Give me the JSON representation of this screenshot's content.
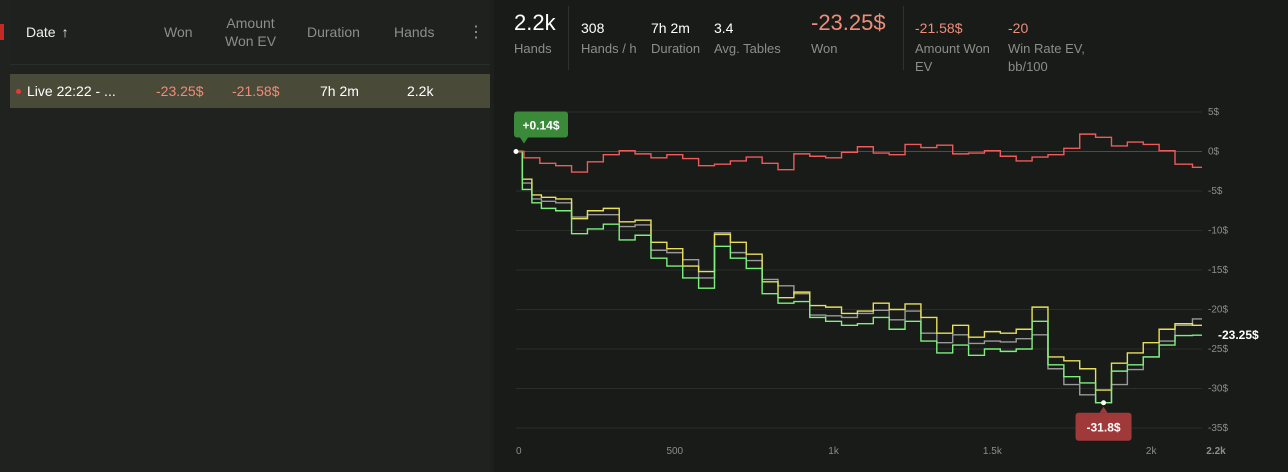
{
  "table": {
    "headers": {
      "date": "Date",
      "sort_arrow": "↑",
      "won": "Won",
      "amount_line1": "Amount",
      "amount_line2": "Won EV",
      "duration": "Duration",
      "hands": "Hands",
      "more": "⋮"
    },
    "rows": [
      {
        "label": "Live 22:22 - ...",
        "won": "-23.25$",
        "amount_won_ev": "-21.58$",
        "duration": "7h 2m",
        "hands": "2.2k"
      }
    ]
  },
  "stats": {
    "hands_value": "2.2k",
    "hands_label": "Hands",
    "hands_per_h_value": "308",
    "hands_per_h_label": "Hands / h",
    "duration_value": "7h 2m",
    "duration_label": "Duration",
    "avg_tables_value": "3.4",
    "avg_tables_label": "Avg. Tables",
    "won_value": "-23.25$",
    "won_label": "Won",
    "amount_won_ev_value": "-21.58$",
    "amount_won_ev_label_1": "Amount Won",
    "amount_won_ev_label_2": "EV",
    "win_rate_ev_value": "-20",
    "win_rate_ev_label_1": "Win Rate EV,",
    "win_rate_ev_label_2": "bb/100"
  },
  "colors": {
    "red_line": "#f05a5a",
    "yellow_line": "#e8e05a",
    "green_line": "#7ef07e",
    "grey_line": "#9a9a9a",
    "max_badge": "#3a8a3a",
    "min_badge": "#a03a3a"
  },
  "chart_data": {
    "type": "line",
    "x_ticks": [
      "0",
      "500",
      "1k",
      "1.5k",
      "2k",
      "2.2k"
    ],
    "x_tick_values": [
      0,
      500,
      1000,
      1500,
      2000,
      2160
    ],
    "y_ticks": [
      "5$",
      "0$",
      "-5$",
      "-10$",
      "-15$",
      "-20$",
      "-25$",
      "-30$",
      "-35$"
    ],
    "y_tick_values": [
      5,
      0,
      -5,
      -10,
      -15,
      -20,
      -25,
      -30,
      -35
    ],
    "xlim": [
      0,
      2160
    ],
    "ylim": [
      -35,
      5
    ],
    "max_label": "+0.14$",
    "min_label": "-31.8$",
    "end_label": "-23.25$",
    "series": [
      {
        "key": "red",
        "x": [
          0,
          50,
          100,
          150,
          200,
          250,
          300,
          350,
          400,
          450,
          500,
          550,
          600,
          650,
          700,
          750,
          800,
          850,
          900,
          950,
          1000,
          1050,
          1100,
          1150,
          1200,
          1250,
          1300,
          1350,
          1400,
          1450,
          1500,
          1550,
          1600,
          1650,
          1700,
          1750,
          1800,
          1850,
          1900,
          1950,
          2000,
          2050,
          2100,
          2160
        ],
        "y": [
          0,
          -0.8,
          -1.5,
          -1.8,
          -2.6,
          -1.3,
          -0.4,
          0.1,
          -0.3,
          -0.8,
          -0.4,
          -0.9,
          -1.8,
          -1.6,
          -1.2,
          -0.7,
          -1.5,
          -2.3,
          -0.3,
          -0.6,
          -0.8,
          -0.1,
          0.6,
          -0.2,
          -0.4,
          0.9,
          0.5,
          0.8,
          -0.3,
          -0.2,
          0.1,
          -0.6,
          -1.2,
          -0.7,
          -0.4,
          0.4,
          2.2,
          1.8,
          0.7,
          1.2,
          0.9,
          0.1,
          -1.6,
          -2.0
        ]
      },
      {
        "key": "yellow",
        "x": [
          0,
          40,
          60,
          100,
          150,
          200,
          250,
          300,
          350,
          400,
          450,
          500,
          550,
          600,
          650,
          700,
          750,
          800,
          850,
          900,
          950,
          1000,
          1050,
          1100,
          1150,
          1200,
          1250,
          1300,
          1350,
          1400,
          1450,
          1500,
          1550,
          1600,
          1650,
          1700,
          1750,
          1800,
          1850,
          1900,
          1950,
          2000,
          2050,
          2100,
          2160
        ],
        "y": [
          0,
          -3.5,
          -5.5,
          -5.8,
          -6.0,
          -8.5,
          -7.5,
          -7.2,
          -8.9,
          -8.7,
          -11.5,
          -12.3,
          -14.5,
          -15.2,
          -10.5,
          -11.5,
          -13.0,
          -16.5,
          -18.5,
          -17.8,
          -19.5,
          -19.7,
          -20.5,
          -20.2,
          -19.2,
          -20.0,
          -19.3,
          -21.0,
          -23.0,
          -22.0,
          -23.5,
          -22.8,
          -23.0,
          -22.5,
          -19.7,
          -26.0,
          -26.5,
          -27.5,
          -30.2,
          -26.8,
          -25.5,
          -24.2,
          -22.5,
          -21.8,
          -22.0
        ]
      },
      {
        "key": "grey",
        "x": [
          0,
          40,
          60,
          100,
          150,
          200,
          250,
          300,
          350,
          400,
          450,
          500,
          550,
          600,
          650,
          700,
          750,
          800,
          850,
          900,
          950,
          1000,
          1050,
          1100,
          1150,
          1200,
          1250,
          1300,
          1350,
          1400,
          1450,
          1500,
          1550,
          1600,
          1650,
          1700,
          1750,
          1800,
          1850,
          1900,
          1950,
          2000,
          2050,
          2100,
          2160
        ],
        "y": [
          0,
          -4.0,
          -6.0,
          -6.3,
          -6.5,
          -8.3,
          -8.0,
          -8.0,
          -9.5,
          -9.3,
          -12.5,
          -12.8,
          -13.7,
          -16.0,
          -10.3,
          -12.8,
          -13.8,
          -16.2,
          -17.0,
          -18.0,
          -20.7,
          -20.8,
          -21.0,
          -20.5,
          -20.1,
          -21.3,
          -20.2,
          -23.0,
          -24.2,
          -23.2,
          -24.3,
          -24.0,
          -24.1,
          -23.7,
          -23.2,
          -27.5,
          -29.5,
          -30.8,
          -31.8,
          -29.5,
          -27.6,
          -26.0,
          -24.0,
          -22.0,
          -21.2
        ]
      },
      {
        "key": "green",
        "x": [
          0,
          40,
          60,
          100,
          150,
          200,
          250,
          300,
          350,
          400,
          450,
          500,
          550,
          600,
          650,
          700,
          750,
          800,
          850,
          900,
          950,
          1000,
          1050,
          1100,
          1150,
          1200,
          1250,
          1300,
          1350,
          1400,
          1450,
          1500,
          1550,
          1600,
          1650,
          1700,
          1750,
          1800,
          1850,
          1900,
          1950,
          2000,
          2050,
          2100,
          2160
        ],
        "y": [
          0,
          -4.8,
          -6.5,
          -7.2,
          -7.5,
          -10.4,
          -9.8,
          -9.2,
          -11.2,
          -10.6,
          -13.5,
          -14.5,
          -16.0,
          -17.3,
          -12.0,
          -13.5,
          -14.8,
          -18.0,
          -19.2,
          -19.0,
          -21.0,
          -21.5,
          -22.0,
          -21.8,
          -21.0,
          -22.5,
          -21.5,
          -24.0,
          -25.5,
          -24.5,
          -25.8,
          -25.0,
          -25.3,
          -25.0,
          -21.5,
          -27.0,
          -28.5,
          -29.3,
          -31.8,
          -27.8,
          -27.0,
          -26.0,
          -24.5,
          -23.3,
          -23.25
        ]
      }
    ]
  }
}
